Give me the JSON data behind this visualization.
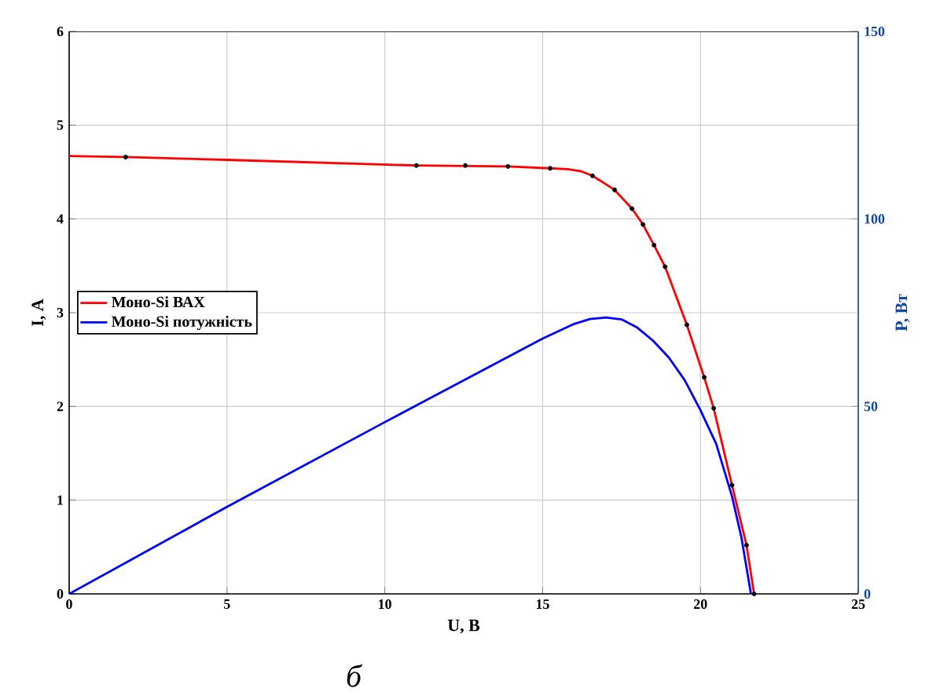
{
  "chart_data": {
    "type": "line",
    "xlabel": "U, B",
    "ylabel": "I, A",
    "y2label": "P, Вт",
    "xlim": [
      0,
      25
    ],
    "xticks": [
      0,
      5,
      10,
      15,
      20,
      25
    ],
    "ylim": [
      0,
      6
    ],
    "yticks": [
      0,
      1,
      2,
      3,
      4,
      5,
      6
    ],
    "y2lim": [
      0,
      150
    ],
    "y2ticks": [
      0,
      50,
      100,
      150
    ],
    "grid": true,
    "legend": "left",
    "annotations": [
      "б"
    ],
    "series": [
      {
        "name": "Моно-Si ВАХ",
        "color": "#ff0000",
        "marker": "none",
        "x": [
          0,
          1.79,
          5,
          11.0,
          13.9,
          15.24,
          15.8,
          16.2,
          16.58,
          17.28,
          17.83,
          18.18,
          18.53,
          18.88,
          19.57,
          20.12,
          20.42,
          21.0,
          21.46,
          21.7
        ],
        "values": [
          4.67,
          4.66,
          4.63,
          4.57,
          4.56,
          4.54,
          4.53,
          4.51,
          4.46,
          4.31,
          4.11,
          3.94,
          3.72,
          3.49,
          2.87,
          2.31,
          1.98,
          1.16,
          0.52,
          0
        ]
      },
      {
        "type": "scatter",
        "color": "#000000",
        "marker": "circle",
        "x": [
          1.79,
          11.0,
          12.55,
          13.9,
          15.24,
          16.58,
          17.28,
          17.83,
          18.18,
          18.53,
          18.88,
          19.57,
          20.12,
          20.42,
          21.0,
          21.46,
          21.7
        ],
        "values": [
          4.66,
          4.57,
          4.57,
          4.56,
          4.54,
          4.46,
          4.31,
          4.11,
          3.94,
          3.72,
          3.49,
          2.87,
          2.31,
          1.98,
          1.16,
          0.52,
          0
        ]
      },
      {
        "name": "Моно-Si потужність",
        "color": "#0000ff",
        "marker": "none",
        "axis": "y2",
        "x": [
          0,
          5,
          10,
          15,
          16,
          16.5,
          17,
          17.5,
          18,
          18.5,
          19,
          19.5,
          20,
          20.5,
          21,
          21.3,
          21.6
        ],
        "values": [
          0,
          23.2,
          45.8,
          68.1,
          72,
          73.3,
          73.7,
          73.2,
          71,
          67.5,
          63,
          57,
          49,
          40,
          26,
          15,
          0
        ]
      }
    ]
  }
}
